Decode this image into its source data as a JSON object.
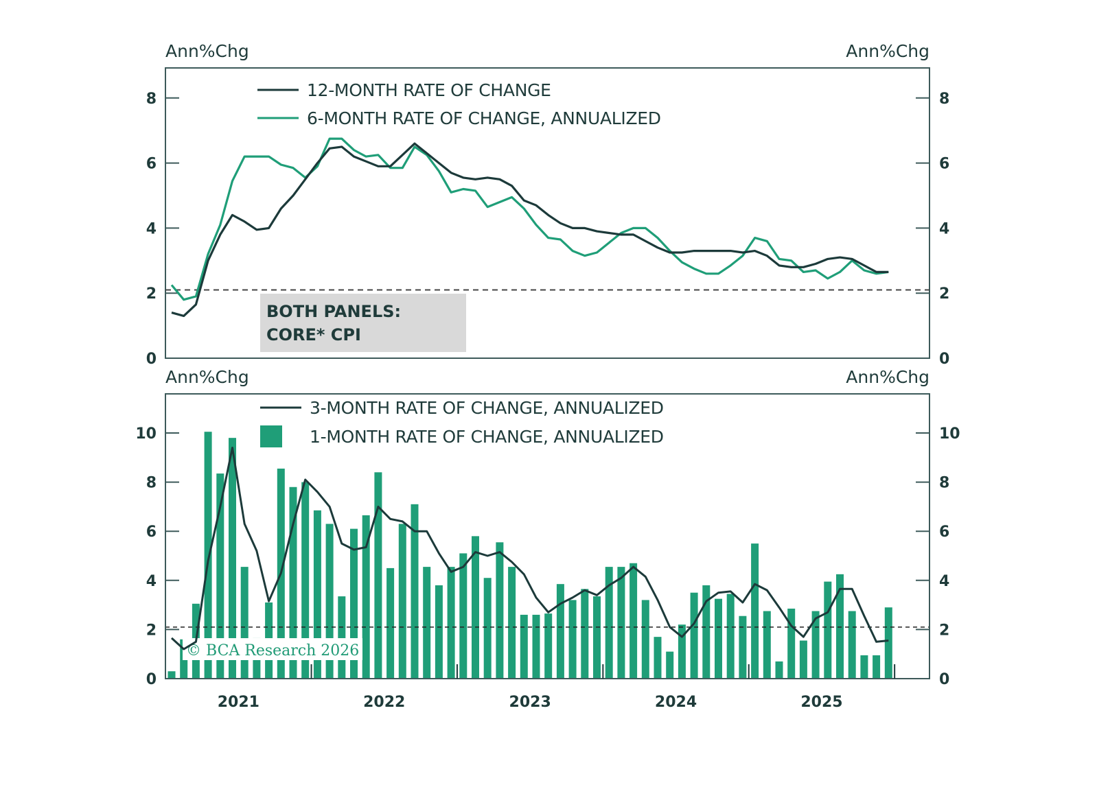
{
  "colors": {
    "dark_line": "#1c3a3a",
    "green": "#1f9e78",
    "frame": "#3d5a5a",
    "text": "#1f3b3a",
    "box_fill": "#d9d9d9",
    "dashed": "#444444"
  },
  "watermark": "© BCA Research 2026",
  "chart_data": [
    {
      "type": "line",
      "panel": "top",
      "left_axis_title": "Ann%Chg",
      "right_axis_title": "Ann%Chg",
      "ylim": [
        0,
        9
      ],
      "yticks": [
        0,
        2,
        4,
        6,
        8
      ],
      "ytick_labels": [
        "0",
        "2",
        "4",
        "6",
        "8"
      ],
      "grid": false,
      "legend_position": "top-left",
      "reference_line": 2.1,
      "annotation": [
        "BOTH PANELS:",
        "CORE* CPI"
      ],
      "x_start": "2021-01",
      "x_frequency": "monthly",
      "series": [
        {
          "name": "12-MONTH RATE OF CHANGE",
          "style": "dark-line",
          "values": [
            1.4,
            1.3,
            1.65,
            3.0,
            3.8,
            4.4,
            4.2,
            3.95,
            4.0,
            4.6,
            5.0,
            5.5,
            6.0,
            6.45,
            6.5,
            6.2,
            6.05,
            5.9,
            5.9,
            6.25,
            6.6,
            6.3,
            6.0,
            5.7,
            5.55,
            5.5,
            5.55,
            5.5,
            5.3,
            4.85,
            4.7,
            4.4,
            4.15,
            4.0,
            4.0,
            3.9,
            3.85,
            3.8,
            3.8,
            3.6,
            3.4,
            3.25,
            3.25,
            3.3,
            3.3,
            3.3,
            3.3,
            3.25,
            3.3,
            3.15,
            2.85,
            2.8,
            2.8,
            2.9,
            3.05,
            3.1,
            3.05,
            2.85,
            2.65,
            2.65
          ]
        },
        {
          "name": "6-MONTH RATE OF CHANGE, ANNUALIZED",
          "style": "green-line",
          "values": [
            2.25,
            1.8,
            1.9,
            3.2,
            4.1,
            5.45,
            6.2,
            6.2,
            6.2,
            5.95,
            5.85,
            5.55,
            5.9,
            6.75,
            6.75,
            6.4,
            6.2,
            6.25,
            5.85,
            5.85,
            6.5,
            6.25,
            5.75,
            5.1,
            5.2,
            5.15,
            4.65,
            4.8,
            4.95,
            4.6,
            4.1,
            3.7,
            3.65,
            3.3,
            3.15,
            3.25,
            3.55,
            3.85,
            4.0,
            4.0,
            3.7,
            3.3,
            2.95,
            2.75,
            2.6,
            2.6,
            2.85,
            3.15,
            3.7,
            3.6,
            3.05,
            3.0,
            2.65,
            2.7,
            2.45,
            2.65,
            3.0,
            2.7,
            2.6,
            2.65
          ]
        }
      ]
    },
    {
      "type": "bar",
      "panel": "bottom",
      "left_axis_title": "Ann%Chg",
      "right_axis_title": "Ann%Chg",
      "ylim": [
        0,
        11.5
      ],
      "yticks": [
        0,
        2,
        4,
        6,
        8,
        10
      ],
      "ytick_labels": [
        "0",
        "2",
        "4",
        "6",
        "8",
        "10"
      ],
      "grid": false,
      "legend_position": "top-left",
      "reference_line": 2.1,
      "x_start": "2021-01",
      "x_frequency": "monthly",
      "xtick_labels": [
        "2021",
        "2022",
        "2023",
        "2024",
        "2025"
      ],
      "series": [
        {
          "name": "3-MONTH RATE OF CHANGE, ANNUALIZED",
          "style": "dark-line",
          "values": [
            1.65,
            1.2,
            1.5,
            4.8,
            7.0,
            9.4,
            6.3,
            5.2,
            3.15,
            4.3,
            6.3,
            8.1,
            7.6,
            7.0,
            5.5,
            5.25,
            5.35,
            7.0,
            6.5,
            6.4,
            6.0,
            6.0,
            5.1,
            4.35,
            4.55,
            5.15,
            5.0,
            5.15,
            4.75,
            4.25,
            3.3,
            2.7,
            3.05,
            3.3,
            3.6,
            3.4,
            3.8,
            4.1,
            4.55,
            4.15,
            3.2,
            2.1,
            1.7,
            2.25,
            3.15,
            3.5,
            3.55,
            3.1,
            3.85,
            3.6,
            2.9,
            2.15,
            1.7,
            2.45,
            2.7,
            3.65,
            3.65,
            2.55,
            1.5,
            1.55
          ]
        },
        {
          "name": "1-MONTH RATE OF CHANGE, ANNUALIZED",
          "style": "green-bar",
          "values": [
            0.3,
            1.6,
            3.05,
            10.05,
            8.35,
            9.8,
            4.55,
            1.65,
            3.1,
            8.55,
            7.8,
            8.0,
            6.85,
            6.3,
            3.35,
            6.1,
            6.65,
            8.4,
            4.5,
            6.3,
            7.1,
            4.55,
            3.8,
            4.55,
            5.1,
            5.8,
            4.1,
            5.55,
            4.55,
            2.6,
            2.6,
            2.65,
            3.85,
            3.2,
            3.65,
            3.35,
            4.55,
            4.55,
            4.7,
            3.2,
            1.7,
            1.1,
            2.2,
            3.5,
            3.8,
            3.25,
            3.45,
            2.55,
            5.5,
            2.75,
            0.7,
            2.85,
            1.55,
            2.75,
            3.95,
            4.25,
            2.75,
            0.95,
            0.95,
            2.9
          ]
        }
      ]
    }
  ]
}
